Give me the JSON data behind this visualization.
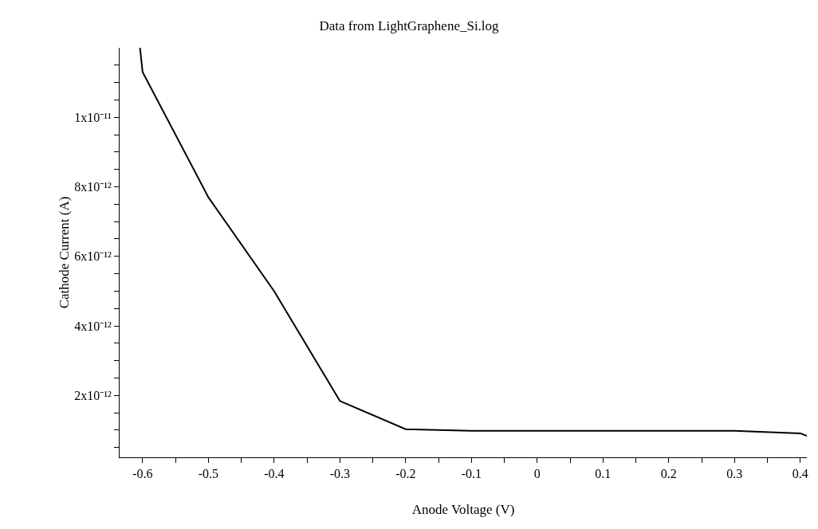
{
  "chart_data": {
    "type": "line",
    "title": "Data from LightGraphene_Si.log",
    "xlabel": "Anode Voltage (V)",
    "ylabel": "Cathode Current (A)",
    "x": [
      -0.604,
      -0.6,
      -0.5,
      -0.4,
      -0.3,
      -0.2,
      -0.1,
      0,
      0.1,
      0.2,
      0.3,
      0.4,
      0.41
    ],
    "series": [
      {
        "color": "#000000",
        "values": [
          1.2e-11,
          1.13e-11,
          7.7e-12,
          5e-12,
          1.84e-12,
          1.03e-12,
          9.8e-13,
          9.8e-13,
          9.8e-13,
          9.8e-13,
          9.8e-13,
          9.1e-13,
          8.4e-13
        ]
      }
    ],
    "xlim": [
      -0.635,
      0.41
    ],
    "ylim": [
      2.2e-13,
      1.2e-11
    ],
    "xticks": [
      -0.6,
      {
        "value": -0.55,
        "label": null
      },
      -0.5,
      {
        "value": -0.45,
        "label": null
      },
      -0.4,
      {
        "value": -0.35,
        "label": null
      },
      -0.3,
      {
        "value": -0.25,
        "label": null
      },
      -0.2,
      {
        "value": -0.15,
        "label": null
      },
      -0.1,
      {
        "value": -0.05,
        "label": null
      },
      0,
      {
        "value": 0.05,
        "label": null
      },
      0.1,
      {
        "value": 0.15,
        "label": null
      },
      0.2,
      {
        "value": 0.25,
        "label": null
      },
      0.3,
      {
        "value": 0.35,
        "label": null
      },
      0.4
    ],
    "yticks": [
      {
        "value": 5e-13,
        "label": null
      },
      {
        "value": 1e-12,
        "label": null
      },
      {
        "value": 1.5e-12,
        "label": null
      },
      {
        "value": 2e-12,
        "label": "2x10⁻¹²"
      },
      {
        "value": 2.5e-12,
        "label": null
      },
      {
        "value": 3e-12,
        "label": null
      },
      {
        "value": 3.5e-12,
        "label": null
      },
      {
        "value": 4e-12,
        "label": "4x10⁻¹²"
      },
      {
        "value": 4.5e-12,
        "label": null
      },
      {
        "value": 5e-12,
        "label": null
      },
      {
        "value": 5.5e-12,
        "label": null
      },
      {
        "value": 6e-12,
        "label": "6x10⁻¹²"
      },
      {
        "value": 6.5e-12,
        "label": null
      },
      {
        "value": 7e-12,
        "label": null
      },
      {
        "value": 7.5e-12,
        "label": null
      },
      {
        "value": 8e-12,
        "label": "8x10⁻¹²"
      },
      {
        "value": 8.5e-12,
        "label": null
      },
      {
        "value": 9e-12,
        "label": null
      },
      {
        "value": 9.5e-12,
        "label": null
      },
      {
        "value": 1e-11,
        "label": "1x10⁻¹¹"
      },
      {
        "value": 1.05e-11,
        "label": null
      },
      {
        "value": 1.1e-11,
        "label": null
      },
      {
        "value": 1.15e-11,
        "label": null
      }
    ],
    "legend": false,
    "marker": "none",
    "line_style": "solid"
  }
}
